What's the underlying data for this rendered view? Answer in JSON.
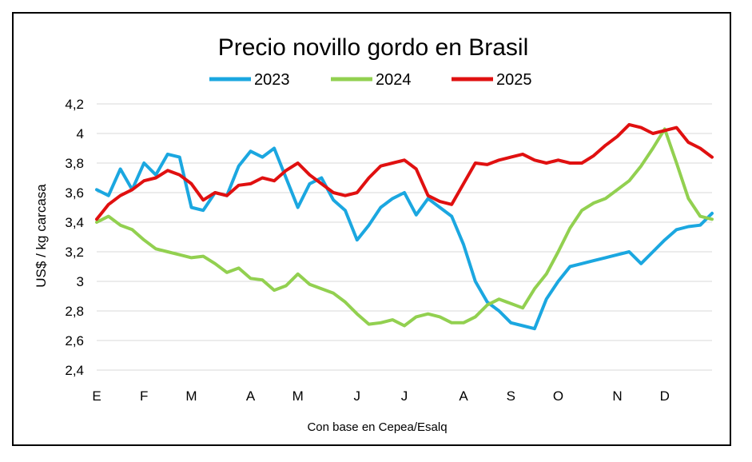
{
  "chart_data": {
    "type": "line",
    "title": "Precio novillo gordo en Brasil",
    "ylabel": "US$ / kg carcasa",
    "xlabel": "",
    "source_note": "Con base en Cepea/Esalq",
    "ylim": [
      2.4,
      4.2
    ],
    "yticks": [
      "2,4",
      "2,6",
      "2,8",
      "3",
      "3,2",
      "3,4",
      "3,6",
      "3,8",
      "4",
      "4,2"
    ],
    "ytick_values": [
      2.4,
      2.6,
      2.8,
      3.0,
      3.2,
      3.4,
      3.6,
      3.8,
      4.0,
      4.2
    ],
    "x_month_labels": [
      "E",
      "F",
      "M",
      "A",
      "M",
      "J",
      "J",
      "A",
      "S",
      "O",
      "N",
      "D"
    ],
    "x_month_positions": [
      1,
      5,
      9,
      14,
      18,
      23,
      27,
      32,
      36,
      40,
      45,
      49
    ],
    "x_domain": [
      1,
      53
    ],
    "x_unit": "week",
    "grid": "horizontal",
    "legend": "top",
    "series": [
      {
        "name": "2023",
        "color": "#1BA7E0",
        "x": [
          1,
          2,
          3,
          4,
          5,
          6,
          7,
          8,
          9,
          10,
          11,
          12,
          13,
          14,
          15,
          16,
          17,
          18,
          19,
          20,
          21,
          22,
          23,
          24,
          25,
          26,
          27,
          28,
          29,
          30,
          31,
          32,
          33,
          34,
          35,
          36,
          37,
          38,
          39,
          40,
          41,
          42,
          43,
          44,
          45,
          46,
          47,
          48,
          49,
          50,
          51,
          52,
          53
        ],
        "y": [
          3.62,
          3.58,
          3.76,
          3.62,
          3.8,
          3.72,
          3.86,
          3.84,
          3.5,
          3.48,
          3.6,
          3.58,
          3.78,
          3.88,
          3.84,
          3.9,
          3.7,
          3.5,
          3.66,
          3.7,
          3.55,
          3.48,
          3.28,
          3.38,
          3.5,
          3.56,
          3.6,
          3.45,
          3.56,
          3.5,
          3.44,
          3.25,
          3.0,
          2.86,
          2.8,
          2.72,
          2.7,
          2.68,
          2.88,
          3.0,
          3.1,
          3.12,
          3.14,
          3.16,
          3.18,
          3.2,
          3.12,
          3.2,
          3.28,
          3.35,
          3.37,
          3.38,
          3.46
        ]
      },
      {
        "name": "2024",
        "color": "#92D050",
        "x": [
          1,
          2,
          3,
          4,
          5,
          6,
          7,
          8,
          9,
          10,
          11,
          12,
          13,
          14,
          15,
          16,
          17,
          18,
          19,
          20,
          21,
          22,
          23,
          24,
          25,
          26,
          27,
          28,
          29,
          30,
          31,
          32,
          33,
          34,
          35,
          36,
          37,
          38,
          39,
          40,
          41,
          42,
          43,
          44,
          45,
          46,
          47,
          48,
          49,
          50,
          51,
          52,
          53
        ],
        "y": [
          3.4,
          3.44,
          3.38,
          3.35,
          3.28,
          3.22,
          3.2,
          3.18,
          3.16,
          3.17,
          3.12,
          3.06,
          3.09,
          3.02,
          3.01,
          2.94,
          2.97,
          3.05,
          2.98,
          2.95,
          2.92,
          2.86,
          2.78,
          2.71,
          2.72,
          2.74,
          2.7,
          2.76,
          2.78,
          2.76,
          2.72,
          2.72,
          2.76,
          2.84,
          2.88,
          2.85,
          2.82,
          2.95,
          3.05,
          3.2,
          3.36,
          3.48,
          3.53,
          3.56,
          3.62,
          3.68,
          3.78,
          3.9,
          4.03,
          3.8,
          3.56,
          3.44,
          3.42
        ]
      },
      {
        "name": "2025",
        "color": "#E01010",
        "x": [
          1,
          2,
          3,
          4,
          5,
          6,
          7,
          8,
          9,
          10,
          11,
          12,
          13,
          14,
          15,
          16,
          17,
          18,
          19,
          20,
          21,
          22,
          23,
          24,
          25,
          26,
          27,
          28,
          29,
          30,
          31,
          32,
          33,
          34,
          35,
          36,
          37,
          38,
          39,
          40,
          41,
          42,
          43,
          44,
          45,
          46,
          47,
          48,
          49,
          50,
          51,
          52,
          53
        ],
        "y": [
          3.42,
          3.52,
          3.58,
          3.62,
          3.68,
          3.7,
          3.75,
          3.72,
          3.66,
          3.55,
          3.6,
          3.58,
          3.65,
          3.66,
          3.7,
          3.68,
          3.75,
          3.8,
          3.72,
          3.66,
          3.6,
          3.58,
          3.6,
          3.7,
          3.78,
          3.8,
          3.82,
          3.76,
          3.58,
          3.54,
          3.52,
          3.66,
          3.8,
          3.79,
          3.82,
          3.84,
          3.86,
          3.82,
          3.8,
          3.82,
          3.8,
          3.8,
          3.85,
          3.92,
          3.98,
          4.06,
          4.04,
          4.0,
          4.02,
          4.04,
          3.94,
          3.9,
          3.84
        ]
      }
    ]
  }
}
